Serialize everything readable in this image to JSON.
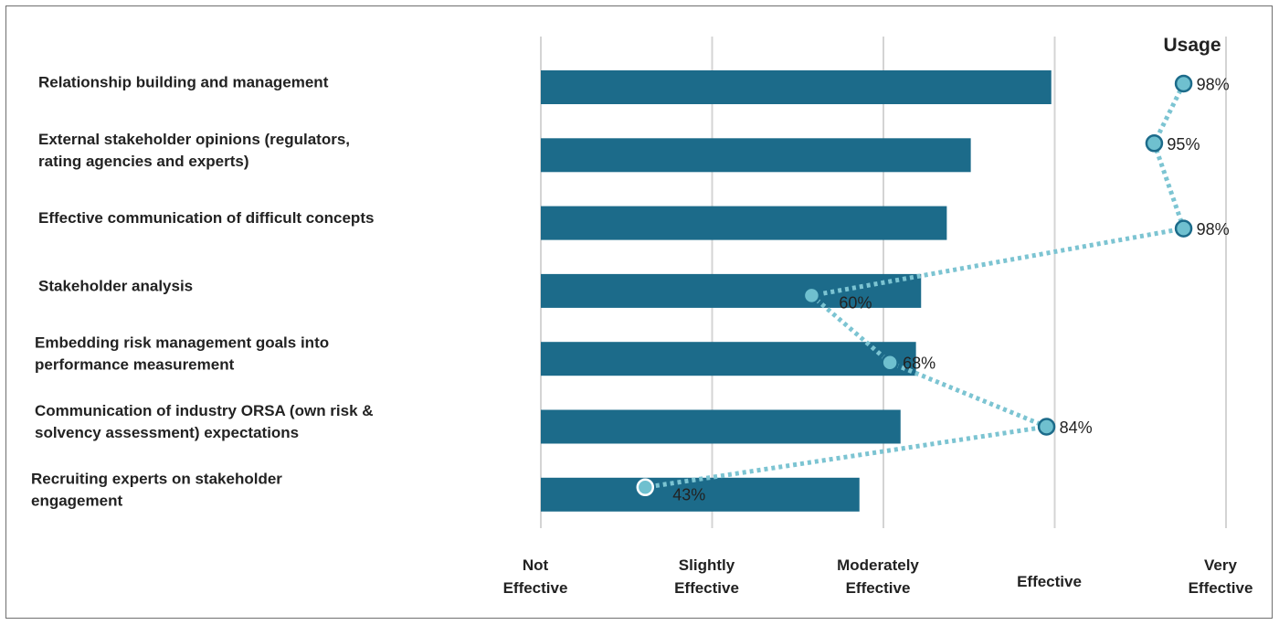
{
  "chart_data": {
    "type": "bar",
    "orientation": "horizontal",
    "categories": [
      [
        "Relationship building and management"
      ],
      [
        "External stakeholder opinions (regulators,",
        "rating agencies and experts)"
      ],
      [
        "Effective communication of difficult concepts"
      ],
      [
        "Stakeholder analysis"
      ],
      [
        "Embedding risk management goals into",
        "performance measurement"
      ],
      [
        "Communication of industry ORSA (own risk &",
        "solvency assessment) expectations"
      ],
      [
        "Recruiting experts on stakeholder",
        "engagement"
      ]
    ],
    "values": [
      3.98,
      3.51,
      3.37,
      3.22,
      3.19,
      3.1,
      2.86
    ],
    "xlim": [
      1,
      5
    ],
    "x_ticks": [
      [
        "Not",
        "Effective"
      ],
      [
        "Slightly",
        "Effective"
      ],
      [
        "Moderately",
        "Effective"
      ],
      [
        "Effective"
      ],
      [
        "Very",
        "Effective"
      ]
    ],
    "grid": "vertical",
    "bar_color": "#1c6b8a",
    "usage": {
      "title": "Usage",
      "values": [
        98,
        95,
        98,
        60,
        68,
        84,
        43
      ],
      "labels": [
        "98%",
        "95%",
        "98%",
        "60%",
        "68%",
        "84%",
        "43%"
      ],
      "line_style": "dotted",
      "line_color": "#7cc4d2",
      "marker_color": "#6fc0cf",
      "marker_edge": "#1c6b8a",
      "last_marker_edge": "#ffffff"
    }
  }
}
